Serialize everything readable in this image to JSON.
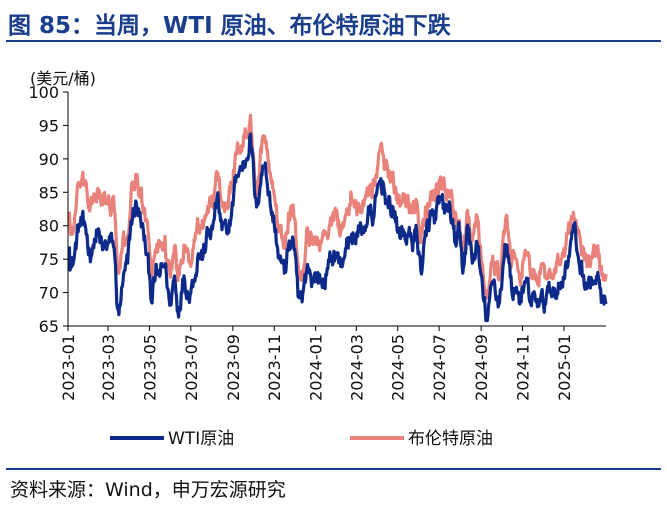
{
  "title": "图 85：当周，WTI 原油、布伦特原油下跌",
  "source": "资料来源：Wind，申万宏源研究",
  "chart_data": {
    "type": "line",
    "ylabel": "(美元/桶)",
    "ylim": [
      65,
      100
    ],
    "yticks": [
      65,
      70,
      75,
      80,
      85,
      90,
      95,
      100
    ],
    "x_range": [
      "2023-01-01",
      "2025-03-04"
    ],
    "xticks": [
      "2023-01",
      "2023-03",
      "2023-05",
      "2023-07",
      "2023-09",
      "2023-11",
      "2024-01",
      "2024-03",
      "2024-05",
      "2024-07",
      "2024-09",
      "2024-11",
      "2025-01"
    ],
    "grid": false,
    "legend": "bottom",
    "series": [
      {
        "name": "WTI原油",
        "color": "#0d2a8a",
        "points": [
          [
            "2023-01-03",
            76.9
          ],
          [
            "2023-01-05",
            73.7
          ],
          [
            "2023-01-10",
            75.1
          ],
          [
            "2023-01-17",
            80.2
          ],
          [
            "2023-01-24",
            80.1
          ],
          [
            "2023-01-27",
            79.7
          ],
          [
            "2023-02-02",
            75.9
          ],
          [
            "2023-02-07",
            77.1
          ],
          [
            "2023-02-14",
            79.1
          ],
          [
            "2023-02-21",
            76.4
          ],
          [
            "2023-02-28",
            77.1
          ],
          [
            "2023-03-07",
            77.6
          ],
          [
            "2023-03-10",
            76.7
          ],
          [
            "2023-03-15",
            67.6
          ],
          [
            "2023-03-17",
            66.7
          ],
          [
            "2023-03-22",
            70.9
          ],
          [
            "2023-03-30",
            74.4
          ],
          [
            "2023-04-04",
            80.7
          ],
          [
            "2023-04-12",
            83.3
          ],
          [
            "2023-04-18",
            80.9
          ],
          [
            "2023-04-25",
            77.1
          ],
          [
            "2023-05-02",
            71.7
          ],
          [
            "2023-05-04",
            68.6
          ],
          [
            "2023-05-10",
            72.6
          ],
          [
            "2023-05-17",
            72.8
          ],
          [
            "2023-05-24",
            74.3
          ],
          [
            "2023-05-31",
            68.1
          ],
          [
            "2023-06-07",
            72.5
          ],
          [
            "2023-06-12",
            67.1
          ],
          [
            "2023-06-21",
            72.5
          ],
          [
            "2023-06-28",
            69.6
          ],
          [
            "2023-07-05",
            71.8
          ],
          [
            "2023-07-12",
            75.8
          ],
          [
            "2023-07-19",
            75.4
          ],
          [
            "2023-07-26",
            78.8
          ],
          [
            "2023-08-02",
            79.5
          ],
          [
            "2023-08-09",
            84.4
          ],
          [
            "2023-08-16",
            79.4
          ],
          [
            "2023-08-23",
            78.9
          ],
          [
            "2023-08-30",
            81.6
          ],
          [
            "2023-09-06",
            87.5
          ],
          [
            "2023-09-13",
            88.5
          ],
          [
            "2023-09-20",
            89.7
          ],
          [
            "2023-09-27",
            93.7
          ],
          [
            "2023-10-04",
            84.2
          ],
          [
            "2023-10-06",
            82.8
          ],
          [
            "2023-10-13",
            87.7
          ],
          [
            "2023-10-19",
            89.4
          ],
          [
            "2023-10-26",
            83.2
          ],
          [
            "2023-11-01",
            80.4
          ],
          [
            "2023-11-08",
            75.3
          ],
          [
            "2023-11-16",
            72.9
          ],
          [
            "2023-11-22",
            77.1
          ],
          [
            "2023-11-29",
            77.9
          ],
          [
            "2023-12-06",
            69.4
          ],
          [
            "2023-12-12",
            68.6
          ],
          [
            "2023-12-20",
            74.2
          ],
          [
            "2023-12-28",
            71.8
          ],
          [
            "2024-01-03",
            72.7
          ],
          [
            "2024-01-10",
            71.4
          ],
          [
            "2024-01-17",
            72.6
          ],
          [
            "2024-01-24",
            75.1
          ],
          [
            "2024-01-31",
            75.9
          ],
          [
            "2024-02-07",
            73.9
          ],
          [
            "2024-02-14",
            76.6
          ],
          [
            "2024-02-21",
            77.9
          ],
          [
            "2024-02-28",
            78.5
          ],
          [
            "2024-03-06",
            79.1
          ],
          [
            "2024-03-13",
            79.7
          ],
          [
            "2024-03-20",
            81.7
          ],
          [
            "2024-03-27",
            81.4
          ],
          [
            "2024-04-04",
            86.6
          ],
          [
            "2024-04-10",
            86.2
          ],
          [
            "2024-04-17",
            82.7
          ],
          [
            "2024-04-24",
            82.8
          ],
          [
            "2024-05-01",
            79.0
          ],
          [
            "2024-05-08",
            78.9
          ],
          [
            "2024-05-15",
            78.6
          ],
          [
            "2024-05-22",
            77.6
          ],
          [
            "2024-05-29",
            79.2
          ],
          [
            "2024-06-04",
            73.3
          ],
          [
            "2024-06-12",
            78.5
          ],
          [
            "2024-06-19",
            81.6
          ],
          [
            "2024-06-26",
            80.9
          ],
          [
            "2024-07-03",
            83.9
          ],
          [
            "2024-07-10",
            82.1
          ],
          [
            "2024-07-17",
            82.9
          ],
          [
            "2024-07-24",
            77.6
          ],
          [
            "2024-07-31",
            78.6
          ],
          [
            "2024-08-05",
            72.9
          ],
          [
            "2024-08-12",
            80.1
          ],
          [
            "2024-08-19",
            74.4
          ],
          [
            "2024-08-26",
            77.4
          ],
          [
            "2024-09-04",
            69.2
          ],
          [
            "2024-09-10",
            65.8
          ],
          [
            "2024-09-13",
            68.7
          ],
          [
            "2024-09-20",
            71.9
          ],
          [
            "2024-09-27",
            68.2
          ],
          [
            "2024-10-07",
            77.1
          ],
          [
            "2024-10-11",
            75.6
          ],
          [
            "2024-10-16",
            70.4
          ],
          [
            "2024-10-23",
            70.8
          ],
          [
            "2024-10-30",
            68.6
          ],
          [
            "2024-11-06",
            71.7
          ],
          [
            "2024-11-13",
            68.4
          ],
          [
            "2024-11-20",
            68.9
          ],
          [
            "2024-11-27",
            68.7
          ],
          [
            "2024-12-04",
            68.5
          ],
          [
            "2024-12-11",
            70.3
          ],
          [
            "2024-12-18",
            70.6
          ],
          [
            "2024-12-27",
            70.6
          ],
          [
            "2025-01-03",
            73.9
          ],
          [
            "2025-01-10",
            76.6
          ],
          [
            "2025-01-15",
            80.0
          ],
          [
            "2025-01-22",
            75.4
          ],
          [
            "2025-01-29",
            72.6
          ],
          [
            "2025-02-05",
            71.0
          ],
          [
            "2025-02-12",
            71.4
          ],
          [
            "2025-02-19",
            72.3
          ],
          [
            "2025-02-26",
            68.6
          ],
          [
            "2025-03-04",
            68.3
          ]
        ]
      },
      {
        "name": "布伦特原油",
        "color": "#e8827a",
        "points": [
          [
            "2023-01-03",
            82.1
          ],
          [
            "2023-01-05",
            78.7
          ],
          [
            "2023-01-10",
            80.1
          ],
          [
            "2023-01-17",
            85.9
          ],
          [
            "2023-01-24",
            86.1
          ],
          [
            "2023-01-27",
            86.7
          ],
          [
            "2023-02-02",
            82.2
          ],
          [
            "2023-02-07",
            83.7
          ],
          [
            "2023-02-14",
            85.6
          ],
          [
            "2023-02-21",
            83.1
          ],
          [
            "2023-02-28",
            83.9
          ],
          [
            "2023-03-07",
            83.3
          ],
          [
            "2023-03-10",
            82.8
          ],
          [
            "2023-03-15",
            73.7
          ],
          [
            "2023-03-17",
            72.9
          ],
          [
            "2023-03-22",
            76.7
          ],
          [
            "2023-03-30",
            78.6
          ],
          [
            "2023-04-04",
            84.9
          ],
          [
            "2023-04-12",
            87.3
          ],
          [
            "2023-04-18",
            84.8
          ],
          [
            "2023-04-25",
            80.7
          ],
          [
            "2023-05-02",
            75.3
          ],
          [
            "2023-05-04",
            72.3
          ],
          [
            "2023-05-10",
            76.4
          ],
          [
            "2023-05-17",
            76.9
          ],
          [
            "2023-05-24",
            78.4
          ],
          [
            "2023-05-31",
            72.7
          ],
          [
            "2023-06-07",
            76.9
          ],
          [
            "2023-06-12",
            71.8
          ],
          [
            "2023-06-21",
            77.1
          ],
          [
            "2023-06-28",
            74.6
          ],
          [
            "2023-07-05",
            76.7
          ],
          [
            "2023-07-12",
            80.1
          ],
          [
            "2023-07-19",
            79.6
          ],
          [
            "2023-07-26",
            82.9
          ],
          [
            "2023-08-02",
            83.2
          ],
          [
            "2023-08-09",
            87.6
          ],
          [
            "2023-08-16",
            83.5
          ],
          [
            "2023-08-23",
            83.2
          ],
          [
            "2023-08-30",
            85.9
          ],
          [
            "2023-09-06",
            90.6
          ],
          [
            "2023-09-13",
            91.9
          ],
          [
            "2023-09-20",
            93.5
          ],
          [
            "2023-09-27",
            96.5
          ],
          [
            "2023-10-04",
            85.8
          ],
          [
            "2023-10-06",
            84.6
          ],
          [
            "2023-10-13",
            90.9
          ],
          [
            "2023-10-19",
            92.4
          ],
          [
            "2023-10-26",
            87.9
          ],
          [
            "2023-11-01",
            84.6
          ],
          [
            "2023-11-08",
            79.5
          ],
          [
            "2023-11-16",
            77.4
          ],
          [
            "2023-11-22",
            81.9
          ],
          [
            "2023-11-29",
            83.1
          ],
          [
            "2023-12-06",
            74.3
          ],
          [
            "2023-12-12",
            73.2
          ],
          [
            "2023-12-20",
            79.7
          ],
          [
            "2023-12-28",
            77.2
          ],
          [
            "2024-01-03",
            78.3
          ],
          [
            "2024-01-10",
            77.8
          ],
          [
            "2024-01-17",
            78.9
          ],
          [
            "2024-01-24",
            80.0
          ],
          [
            "2024-01-31",
            81.7
          ],
          [
            "2024-02-07",
            79.2
          ],
          [
            "2024-02-14",
            81.6
          ],
          [
            "2024-02-21",
            83.0
          ],
          [
            "2024-02-28",
            83.7
          ],
          [
            "2024-03-06",
            82.9
          ],
          [
            "2024-03-13",
            84.0
          ],
          [
            "2024-03-20",
            85.9
          ],
          [
            "2024-03-27",
            86.1
          ],
          [
            "2024-04-04",
            91.1
          ],
          [
            "2024-04-10",
            90.5
          ],
          [
            "2024-04-17",
            87.3
          ],
          [
            "2024-04-24",
            88.0
          ],
          [
            "2024-05-01",
            83.4
          ],
          [
            "2024-05-08",
            83.6
          ],
          [
            "2024-05-15",
            82.8
          ],
          [
            "2024-05-22",
            81.9
          ],
          [
            "2024-05-29",
            83.6
          ],
          [
            "2024-06-04",
            77.5
          ],
          [
            "2024-06-12",
            82.6
          ],
          [
            "2024-06-19",
            85.1
          ],
          [
            "2024-06-26",
            85.3
          ],
          [
            "2024-07-03",
            87.3
          ],
          [
            "2024-07-10",
            85.1
          ],
          [
            "2024-07-17",
            85.1
          ],
          [
            "2024-07-24",
            81.7
          ],
          [
            "2024-07-31",
            80.8
          ],
          [
            "2024-08-05",
            76.3
          ],
          [
            "2024-08-12",
            82.3
          ],
          [
            "2024-08-19",
            77.7
          ],
          [
            "2024-08-26",
            81.4
          ],
          [
            "2024-09-04",
            72.7
          ],
          [
            "2024-09-10",
            69.2
          ],
          [
            "2024-09-13",
            71.6
          ],
          [
            "2024-09-20",
            74.5
          ],
          [
            "2024-09-27",
            71.9
          ],
          [
            "2024-10-07",
            80.9
          ],
          [
            "2024-10-11",
            79.0
          ],
          [
            "2024-10-16",
            74.2
          ],
          [
            "2024-10-23",
            75.0
          ],
          [
            "2024-10-30",
            72.8
          ],
          [
            "2024-11-06",
            75.9
          ],
          [
            "2024-11-13",
            72.3
          ],
          [
            "2024-11-20",
            72.8
          ],
          [
            "2024-11-27",
            72.8
          ],
          [
            "2024-12-04",
            72.3
          ],
          [
            "2024-12-11",
            73.5
          ],
          [
            "2024-12-18",
            73.4
          ],
          [
            "2024-12-27",
            74.2
          ],
          [
            "2025-01-03",
            76.5
          ],
          [
            "2025-01-10",
            79.8
          ],
          [
            "2025-01-15",
            82.0
          ],
          [
            "2025-01-22",
            79.0
          ],
          [
            "2025-01-29",
            76.6
          ],
          [
            "2025-02-05",
            74.6
          ],
          [
            "2025-02-12",
            75.2
          ],
          [
            "2025-02-19",
            76.0
          ],
          [
            "2025-02-26",
            72.5
          ],
          [
            "2025-03-04",
            72.8
          ]
        ]
      }
    ]
  }
}
